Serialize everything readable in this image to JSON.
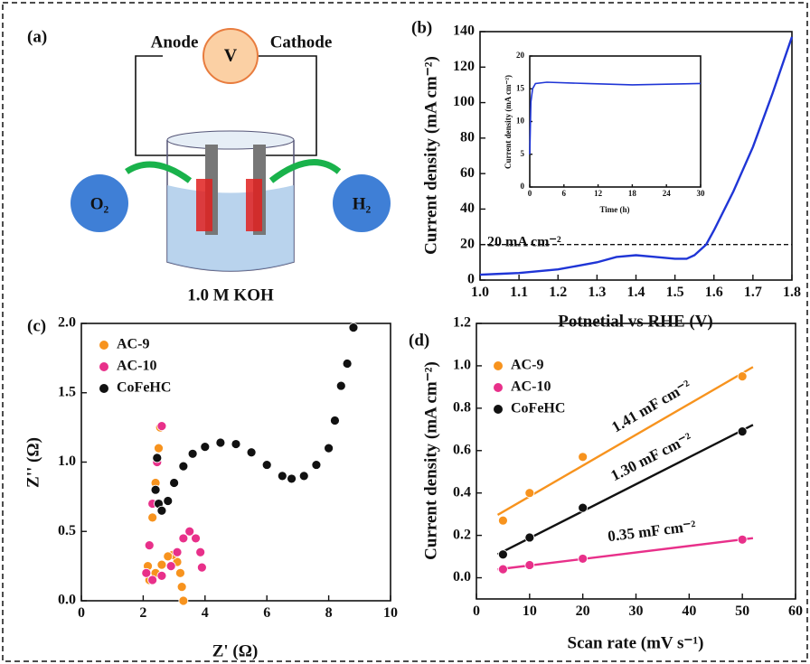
{
  "diagram": {
    "panel": "(a)",
    "voltmeter": "V",
    "anode": "Anode",
    "cathode": "Cathode",
    "oxygen": "O₂",
    "hydrogen": "H₂",
    "electrolyte": "1.0 M KOH"
  },
  "chart_data": [
    {
      "type": "line",
      "panel": "(b)",
      "xlabel": "Potnetial vs RHE (V)",
      "ylabel": "Current density (mA cm⁻²)",
      "xlim": [
        1.0,
        1.8
      ],
      "ylim": [
        0,
        140
      ],
      "xticks": [
        {
          "value": 1,
          "label": "1.0"
        },
        1.1,
        1.2,
        1.3,
        1.4,
        1.5,
        1.6,
        1.7,
        1.8
      ],
      "yticks": [
        0,
        20,
        40,
        60,
        80,
        100,
        120,
        140
      ],
      "x": [
        1.0,
        1.05,
        1.1,
        1.15,
        1.2,
        1.25,
        1.3,
        1.35,
        1.4,
        1.45,
        1.5,
        1.53,
        1.55,
        1.58,
        1.6,
        1.65,
        1.7,
        1.75,
        1.8
      ],
      "series": [
        {
          "color": "#1f35d6",
          "values": [
            3,
            3.5,
            4,
            5,
            6,
            8,
            10,
            13,
            14,
            13,
            12,
            12,
            14,
            20,
            28,
            50,
            75,
            105,
            137
          ]
        }
      ],
      "hline": 20,
      "hline_label": "20 mA cm⁻²"
    },
    {
      "type": "line",
      "xlabel": "Time (h)",
      "ylabel": "Current density (mA cm⁻²)",
      "xlim": [
        0,
        30
      ],
      "ylim": [
        0,
        20
      ],
      "xticks": [
        0,
        6,
        12,
        18,
        24,
        30
      ],
      "yticks": [
        0,
        5,
        10,
        15,
        20
      ],
      "x": [
        0,
        0.2,
        0.5,
        1,
        3,
        10,
        18,
        24,
        30
      ],
      "series": [
        {
          "color": "#1f35d6",
          "values": [
            5,
            13,
            15,
            15.8,
            16,
            15.8,
            15.6,
            15.7,
            15.8
          ]
        }
      ]
    },
    {
      "type": "scatter",
      "panel": "(c)",
      "xlabel": "Z' (Ω)",
      "ylabel": "Z'' (Ω)",
      "xlim": [
        0,
        10
      ],
      "ylim": [
        0,
        2
      ],
      "xticks": [
        0,
        2,
        4,
        6,
        8,
        10
      ],
      "yticks": [
        {
          "value": 0,
          "label": "0.0"
        },
        0.5,
        {
          "value": 1,
          "label": "1.0"
        },
        1.5,
        {
          "value": 2,
          "label": "2.0"
        }
      ],
      "series": [
        {
          "name": "AC-9",
          "color": "#f7931e",
          "x": [
            3.3,
            3.25,
            3.2,
            3.1,
            2.95,
            2.8,
            2.6,
            2.4,
            2.2,
            2.15,
            2.2,
            2.3,
            2.4,
            2.5,
            2.55
          ],
          "values": [
            0,
            0.1,
            0.2,
            0.28,
            0.33,
            0.32,
            0.26,
            0.2,
            0.15,
            0.25,
            0.4,
            0.6,
            0.85,
            1.1,
            1.25
          ]
        },
        {
          "name": "AC-10",
          "color": "#e8308a",
          "x": [
            3.9,
            3.85,
            3.7,
            3.5,
            3.3,
            3.1,
            2.9,
            2.6,
            2.3,
            2.1,
            2.2,
            2.3,
            2.45,
            2.6
          ],
          "values": [
            0.24,
            0.35,
            0.45,
            0.5,
            0.45,
            0.35,
            0.25,
            0.18,
            0.15,
            0.2,
            0.4,
            0.7,
            1.0,
            1.26
          ]
        },
        {
          "name": "CoFeHC",
          "color": "#111111",
          "x": [
            2.4,
            2.45,
            2.5,
            2.6,
            2.8,
            3,
            3.3,
            3.6,
            4,
            4.5,
            5,
            5.5,
            6,
            6.5,
            6.8,
            7.2,
            7.6,
            8,
            8.2,
            8.4,
            8.6,
            8.8
          ],
          "values": [
            0.8,
            1.03,
            0.7,
            0.65,
            0.72,
            0.85,
            0.97,
            1.06,
            1.11,
            1.14,
            1.13,
            1.07,
            0.98,
            0.9,
            0.88,
            0.9,
            0.98,
            1.1,
            1.3,
            1.55,
            1.71,
            1.97
          ]
        }
      ]
    },
    {
      "type": "scatter",
      "panel": "(d)",
      "xlabel": "Scan rate (mV s⁻¹)",
      "ylabel": "Current density (mA cm⁻²)",
      "xlim": [
        0,
        60
      ],
      "ylim": [
        -0.1,
        1.2
      ],
      "xticks": [
        0,
        10,
        20,
        30,
        40,
        50,
        60
      ],
      "yticks": [
        {
          "value": 0,
          "label": "0.0"
        },
        0.2,
        0.4,
        0.6,
        0.8,
        {
          "value": 1,
          "label": "1.0"
        },
        1.2
      ],
      "fit": true,
      "series": [
        {
          "name": "AC-9",
          "color": "#f7931e",
          "x": [
            5,
            10,
            20,
            50
          ],
          "values": [
            0.27,
            0.4,
            0.57,
            0.95
          ],
          "annotation": "1.41 mF cm⁻²"
        },
        {
          "name": "AC-10",
          "color": "#e8308a",
          "x": [
            5,
            10,
            20,
            50
          ],
          "values": [
            0.04,
            0.06,
            0.09,
            0.18
          ],
          "annotation": "0.35 mF cm⁻²"
        },
        {
          "name": "CoFeHC",
          "color": "#111111",
          "x": [
            5,
            10,
            20,
            50
          ],
          "values": [
            0.11,
            0.19,
            0.33,
            0.69
          ],
          "annotation": "1.30 mF cm⁻²"
        }
      ]
    }
  ]
}
